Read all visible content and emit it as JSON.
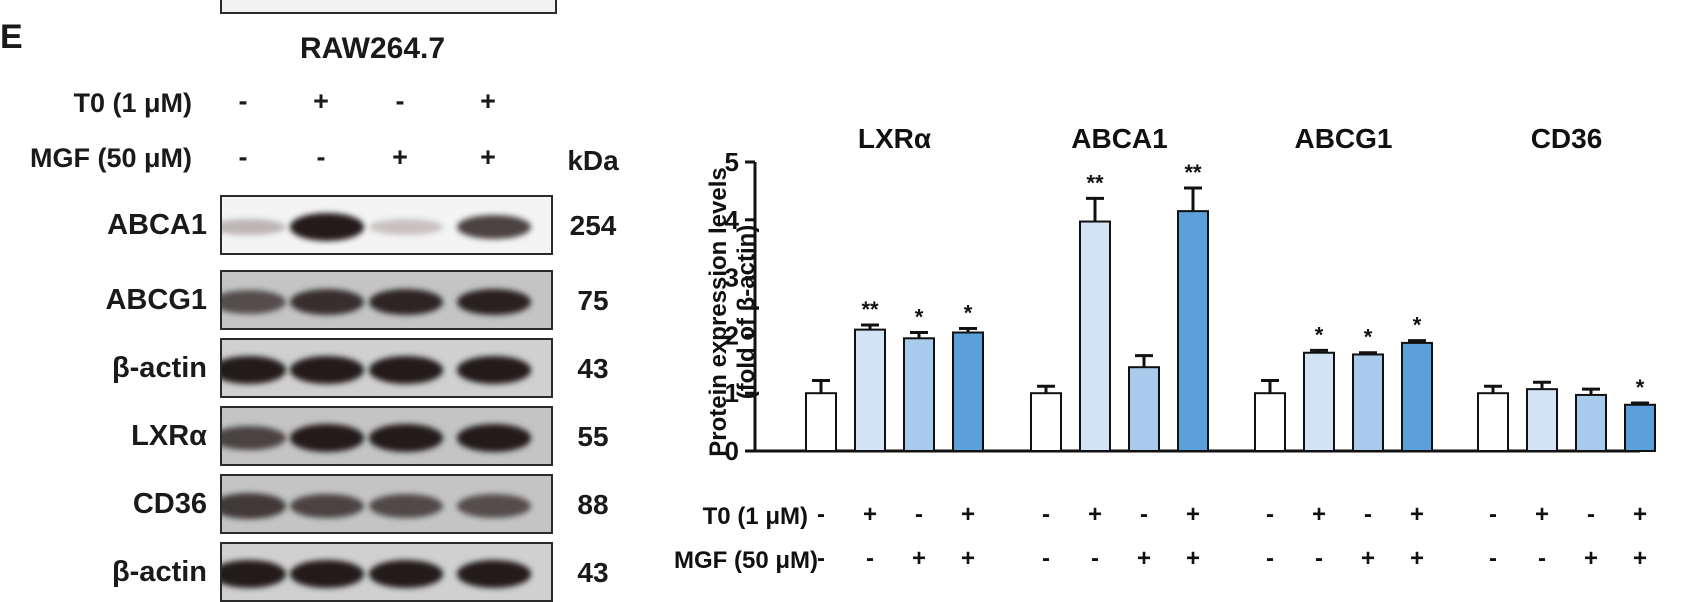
{
  "panel_letter": "E",
  "cell_line": "RAW264.7",
  "blot": {
    "kda_label": "kDa",
    "conditions": [
      {
        "label": "T0 (1 μM)",
        "signs": [
          "-",
          "+",
          "-",
          "+"
        ]
      },
      {
        "label": "MGF (50 μM)",
        "signs": [
          "-",
          "-",
          "+",
          "+"
        ]
      }
    ],
    "rows": [
      {
        "protein": "ABCA1",
        "kda": "254",
        "intensity": [
          0.18,
          0.95,
          0.12,
          0.75
        ]
      },
      {
        "protein": "ABCG1",
        "kda": "75",
        "intensity": [
          0.7,
          0.85,
          0.9,
          0.92
        ]
      },
      {
        "protein": "β-actin",
        "kda": "43",
        "intensity": [
          0.95,
          0.95,
          0.95,
          0.95
        ]
      },
      {
        "protein": "LXRα",
        "kda": "55",
        "intensity": [
          0.75,
          0.95,
          0.95,
          0.95
        ]
      },
      {
        "protein": "CD36",
        "kda": "88",
        "intensity": [
          0.8,
          0.75,
          0.72,
          0.7
        ]
      },
      {
        "protein": "β-actin",
        "kda": "43",
        "intensity": [
          0.95,
          0.95,
          0.95,
          0.95
        ]
      }
    ]
  },
  "chart_data": {
    "type": "bar",
    "ylabel_line1": "Protein expression levels",
    "ylabel_line2": "(fold of β-actin)",
    "ylim": [
      0,
      5
    ],
    "yticks": [
      "0",
      "1",
      "2",
      "3",
      "4",
      "5"
    ],
    "groups": [
      {
        "name": "LXRα",
        "values": [
          1.0,
          2.1,
          1.95,
          2.05
        ],
        "errors": [
          0.22,
          0.08,
          0.1,
          0.07
        ],
        "sig": [
          "",
          "**",
          "*",
          "*"
        ]
      },
      {
        "name": "ABCA1",
        "values": [
          1.0,
          3.97,
          1.45,
          4.15
        ],
        "errors": [
          0.12,
          0.4,
          0.2,
          0.4
        ],
        "sig": [
          "",
          "**",
          "",
          "**"
        ]
      },
      {
        "name": "ABCG1",
        "values": [
          1.0,
          1.7,
          1.67,
          1.87
        ],
        "errors": [
          0.22,
          0.04,
          0.03,
          0.04
        ],
        "sig": [
          "",
          "*",
          "*",
          "*"
        ]
      },
      {
        "name": "CD36",
        "values": [
          1.0,
          1.07,
          0.97,
          0.8
        ],
        "errors": [
          0.12,
          0.12,
          0.1,
          0.03
        ],
        "sig": [
          "",
          "",
          "",
          "*"
        ]
      }
    ],
    "bar_colors": [
      "#ffffff",
      "#d2e3f5",
      "#a9cbeb",
      "#5b9fdb"
    ],
    "conditions": [
      {
        "label": "T0 (1 μM)",
        "signs": [
          "-",
          "+",
          "-",
          "+"
        ]
      },
      {
        "label": "MGF (50 μM)",
        "signs": [
          "-",
          "-",
          "+",
          "+"
        ]
      }
    ]
  }
}
